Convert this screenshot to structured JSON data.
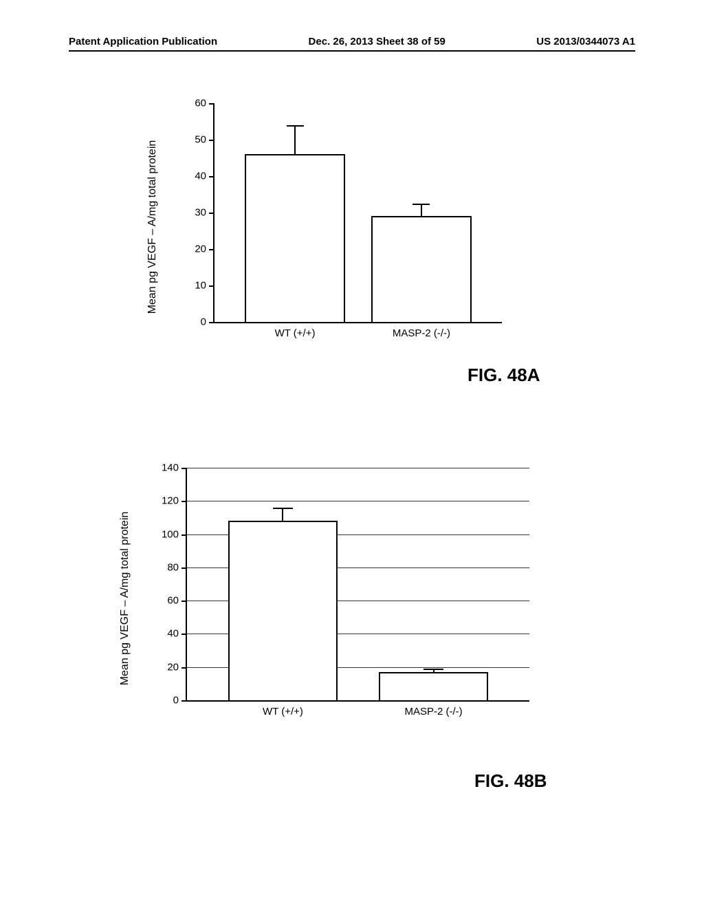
{
  "header": {
    "left": "Patent Application Publication",
    "center": "Dec. 26, 2013  Sheet 38 of 59",
    "right": "US 2013/0344073 A1"
  },
  "chart_a": {
    "type": "bar",
    "ylabel": "Mean pg VEGF – A/mg total protein",
    "ylim": [
      0,
      60
    ],
    "ytick_step": 10,
    "categories": [
      "WT (+/+)",
      "MASP-2 (-/-)"
    ],
    "values": [
      46,
      29
    ],
    "errors": [
      8,
      3.5
    ],
    "bar_fill": "#ffffff",
    "bar_border": "#000000",
    "bar_width": 0.35,
    "bar_centers": [
      0.28,
      0.72
    ],
    "background_color": "#ffffff",
    "grid_color": "#333333",
    "label_fontsize": 15,
    "figure_label": "FIG. 48A"
  },
  "chart_b": {
    "type": "bar",
    "ylabel": "Mean pg VEGF – A/mg total protein",
    "ylim": [
      0,
      140
    ],
    "ytick_step": 20,
    "categories": [
      "WT (+/+)",
      "MASP-2 (-/-)"
    ],
    "values": [
      108,
      17
    ],
    "errors": [
      8,
      2
    ],
    "bar_fill": "#ffffff",
    "bar_border": "#000000",
    "bar_width": 0.32,
    "bar_centers": [
      0.28,
      0.72
    ],
    "background_color": "#ffffff",
    "grid_color": "#333333",
    "label_fontsize": 15,
    "figure_label": "FIG. 48B"
  }
}
